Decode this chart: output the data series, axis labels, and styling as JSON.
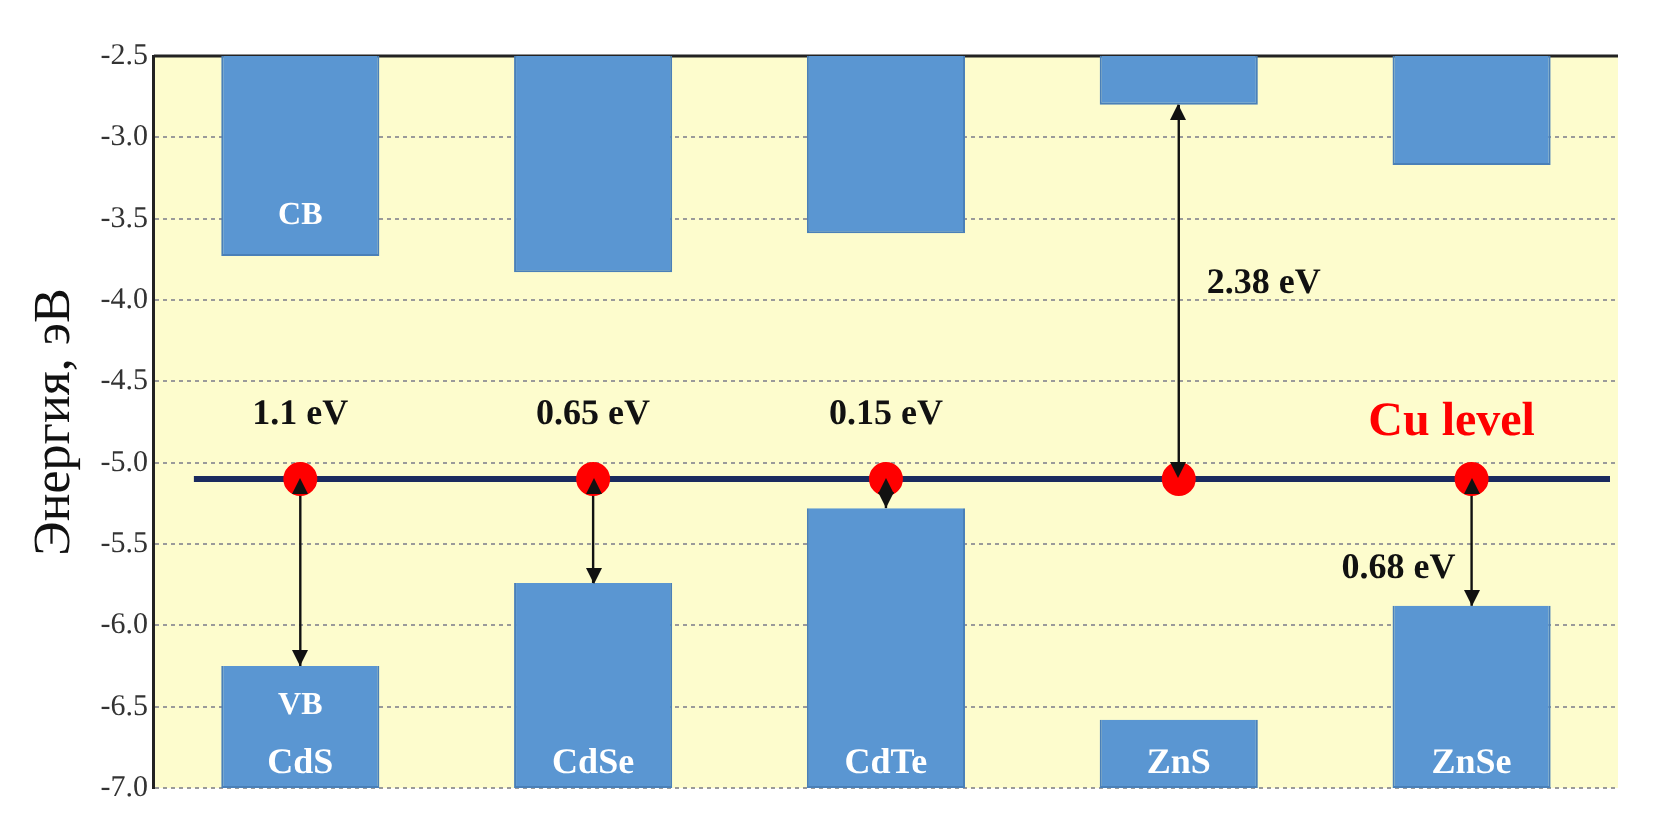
{
  "chart_data": {
    "type": "bar",
    "ylabel": "Энергия, эВ",
    "categories": [
      "CdS",
      "CdSe",
      "CdTe",
      "ZnS",
      "ZnSe"
    ],
    "series": [
      {
        "color": "#5a96d2",
        "base": [
          -2.5,
          -2.5,
          -2.5,
          -2.5,
          -2.5
        ],
        "values": [
          -1.23,
          -1.33,
          -1.09,
          -0.3,
          -0.67
        ]
      },
      {
        "color": "#5a96d2",
        "base": [
          -7,
          -7,
          -7,
          -7,
          -7
        ],
        "values": [
          0.75,
          1.26,
          1.72,
          0.42,
          1.12
        ]
      },
      {
        "type": "scatter",
        "name": "Cu level",
        "color": "#ff0000",
        "x": [
          "CdS",
          "CdSe",
          "CdTe",
          "ZnS",
          "ZnSe"
        ],
        "values": [
          -5.1,
          -5.1,
          -5.1,
          -5.1,
          -5.1
        ],
        "errors": [
          [
            -6.25,
            -5.1
          ],
          [
            -5.74,
            -5.1
          ],
          [
            -5.28,
            -5.1
          ],
          [
            -5.1,
            -2.8
          ],
          [
            -5.88,
            -5.1
          ]
        ]
      }
    ],
    "ref_lines": [
      {
        "axis": "y",
        "value": -5.1,
        "color": "#1a2a5e"
      }
    ],
    "annotations": [
      {
        "text": "CB",
        "x": "CdS",
        "y": -3.73
      },
      {
        "text": "VB",
        "x": "CdS",
        "y": -6.25
      },
      {
        "text": "1.1 eV",
        "x": "CdS",
        "y": -5.1
      },
      {
        "text": "0.65 eV",
        "x": "CdSe",
        "y": -5.1
      },
      {
        "text": "0.15 eV",
        "x": "CdTe",
        "y": -5.1
      },
      {
        "text": "2.38 eV",
        "x": "ZnS",
        "y": -3.9
      },
      {
        "text": "0.68 eV",
        "x": "ZnSe",
        "y": -5.65
      }
    ],
    "ylim": [
      -7,
      -2.5
    ],
    "yticks": [
      {
        "value": -7,
        "label": "-7.0"
      },
      -6.5,
      {
        "value": -6,
        "label": "-6.0"
      },
      -5.5,
      {
        "value": -5,
        "label": "-5.0"
      },
      -4.5,
      {
        "value": -4,
        "label": "-4.0"
      },
      -3.5,
      {
        "value": -3,
        "label": "-3.0"
      },
      -2.5
    ],
    "grid": "y",
    "legend": false,
    "marker": "circle"
  }
}
